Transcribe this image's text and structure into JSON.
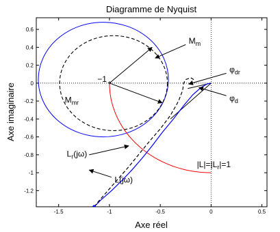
{
  "chart_data": {
    "type": "line",
    "title": "Diagramme de Nyquist",
    "xlabel": "Axe réel",
    "ylabel": "Axe imaginaire",
    "xlim": [
      -1.72,
      0.55
    ],
    "ylim": [
      -1.38,
      0.73
    ],
    "x_ticks": [
      -1.5,
      -1,
      -0.5,
      0,
      0.5
    ],
    "x_tick_labels": [
      "-1.5",
      "-1",
      "-0.5",
      "0",
      "0.5"
    ],
    "y_ticks": [
      0.6,
      0.4,
      0.2,
      0,
      -0.2,
      -0.4,
      -0.6,
      -0.8,
      -1,
      -1.2
    ],
    "y_tick_labels": [
      "0.6",
      "0.4",
      "0.2",
      "0",
      "-0.2",
      "-0.4",
      "-0.6",
      "-0.8",
      "-1",
      "-1.2"
    ],
    "grid": false,
    "critical_point": {
      "x": -1,
      "y": 0,
      "label": "−1"
    },
    "series": [
      {
        "name": "L(jω)",
        "color": "#0000ff",
        "x": [
          0.0,
          -0.04,
          -0.1,
          -0.18,
          -0.27,
          -0.37,
          -0.48,
          -0.58,
          -0.68,
          -0.78,
          -0.88,
          -0.98,
          -1.08,
          -1.15
        ],
        "y": [
          0.0,
          -0.01,
          -0.05,
          -0.13,
          -0.25,
          -0.4,
          -0.55,
          -0.7,
          -0.84,
          -0.97,
          -1.09,
          -1.2,
          -1.3,
          -1.38
        ]
      },
      {
        "name": "Lr(jω)",
        "color": "#000000",
        "x": [
          -0.17,
          -0.2,
          -0.25,
          -0.27,
          -0.28,
          -0.32,
          -0.4,
          -0.5,
          -0.6,
          -0.7,
          -0.8,
          -0.9,
          -1.0,
          -1.1,
          -1.15
        ],
        "y": [
          0.04,
          0.06,
          0.04,
          0.0,
          -0.08,
          -0.2,
          -0.36,
          -0.51,
          -0.64,
          -0.78,
          -0.92,
          -1.05,
          -1.18,
          -1.31,
          -1.38
        ]
      }
    ],
    "circles": [
      {
        "name": "M_m",
        "cx": -1.06,
        "cy": 0.04,
        "r": 0.64,
        "color": "#0000ff",
        "dashed": false
      },
      {
        "name": "M_mr",
        "cx": -0.96,
        "cy": 0.0,
        "r": 0.53,
        "color": "#000000",
        "dashed": true
      }
    ],
    "unit_arc": {
      "label": "|L|=|Lr|=1",
      "color": "#ff0000",
      "center": [
        0,
        0
      ],
      "r": 1,
      "from_deg": 180,
      "to_deg": 270
    },
    "annotations": [
      {
        "label": "M",
        "sub": "m",
        "text_x": -0.22,
        "text_y": 0.44,
        "arrows": [
          [
            -1.0,
            0.0,
            -0.58,
            0.4
          ],
          [
            -0.25,
            0.43,
            -0.55,
            0.28
          ]
        ]
      },
      {
        "label": "M",
        "sub": "mr",
        "text_x": -1.44,
        "text_y": -0.22,
        "arrows": [
          [
            -1.0,
            0.0,
            -0.48,
            -0.22
          ]
        ]
      },
      {
        "label": "φ",
        "sub": "dr",
        "text_x": 0.18,
        "text_y": 0.12,
        "arrows": [
          [
            0.15,
            0.11,
            -0.22,
            -0.01
          ]
        ]
      },
      {
        "label": "φ",
        "sub": "d",
        "text_x": 0.18,
        "text_y": -0.2,
        "arrows": [
          [
            0.15,
            -0.14,
            -0.12,
            -0.05
          ]
        ]
      },
      {
        "label": "L",
        "sub": "r",
        "suffix": "(jω)",
        "text_x": -1.42,
        "text_y": -0.82,
        "arrows": [
          [
            -1.2,
            -0.8,
            -0.81,
            -0.7
          ]
        ]
      },
      {
        "label": "L(jω)",
        "sub": "",
        "text_x": -0.95,
        "text_y": -1.11,
        "arrows": [
          [
            -0.98,
            -1.05,
            -1.2,
            -0.97
          ]
        ]
      },
      {
        "label": "|L|=|L",
        "sub": "r",
        "suffix": "|=1",
        "text_x": -0.14,
        "text_y": -0.94,
        "arrows": []
      }
    ],
    "angle_lines": [
      [
        0.0,
        0.0,
        -0.23,
        -0.06
      ],
      [
        0.0,
        0.0,
        -0.4,
        -0.4
      ]
    ]
  }
}
